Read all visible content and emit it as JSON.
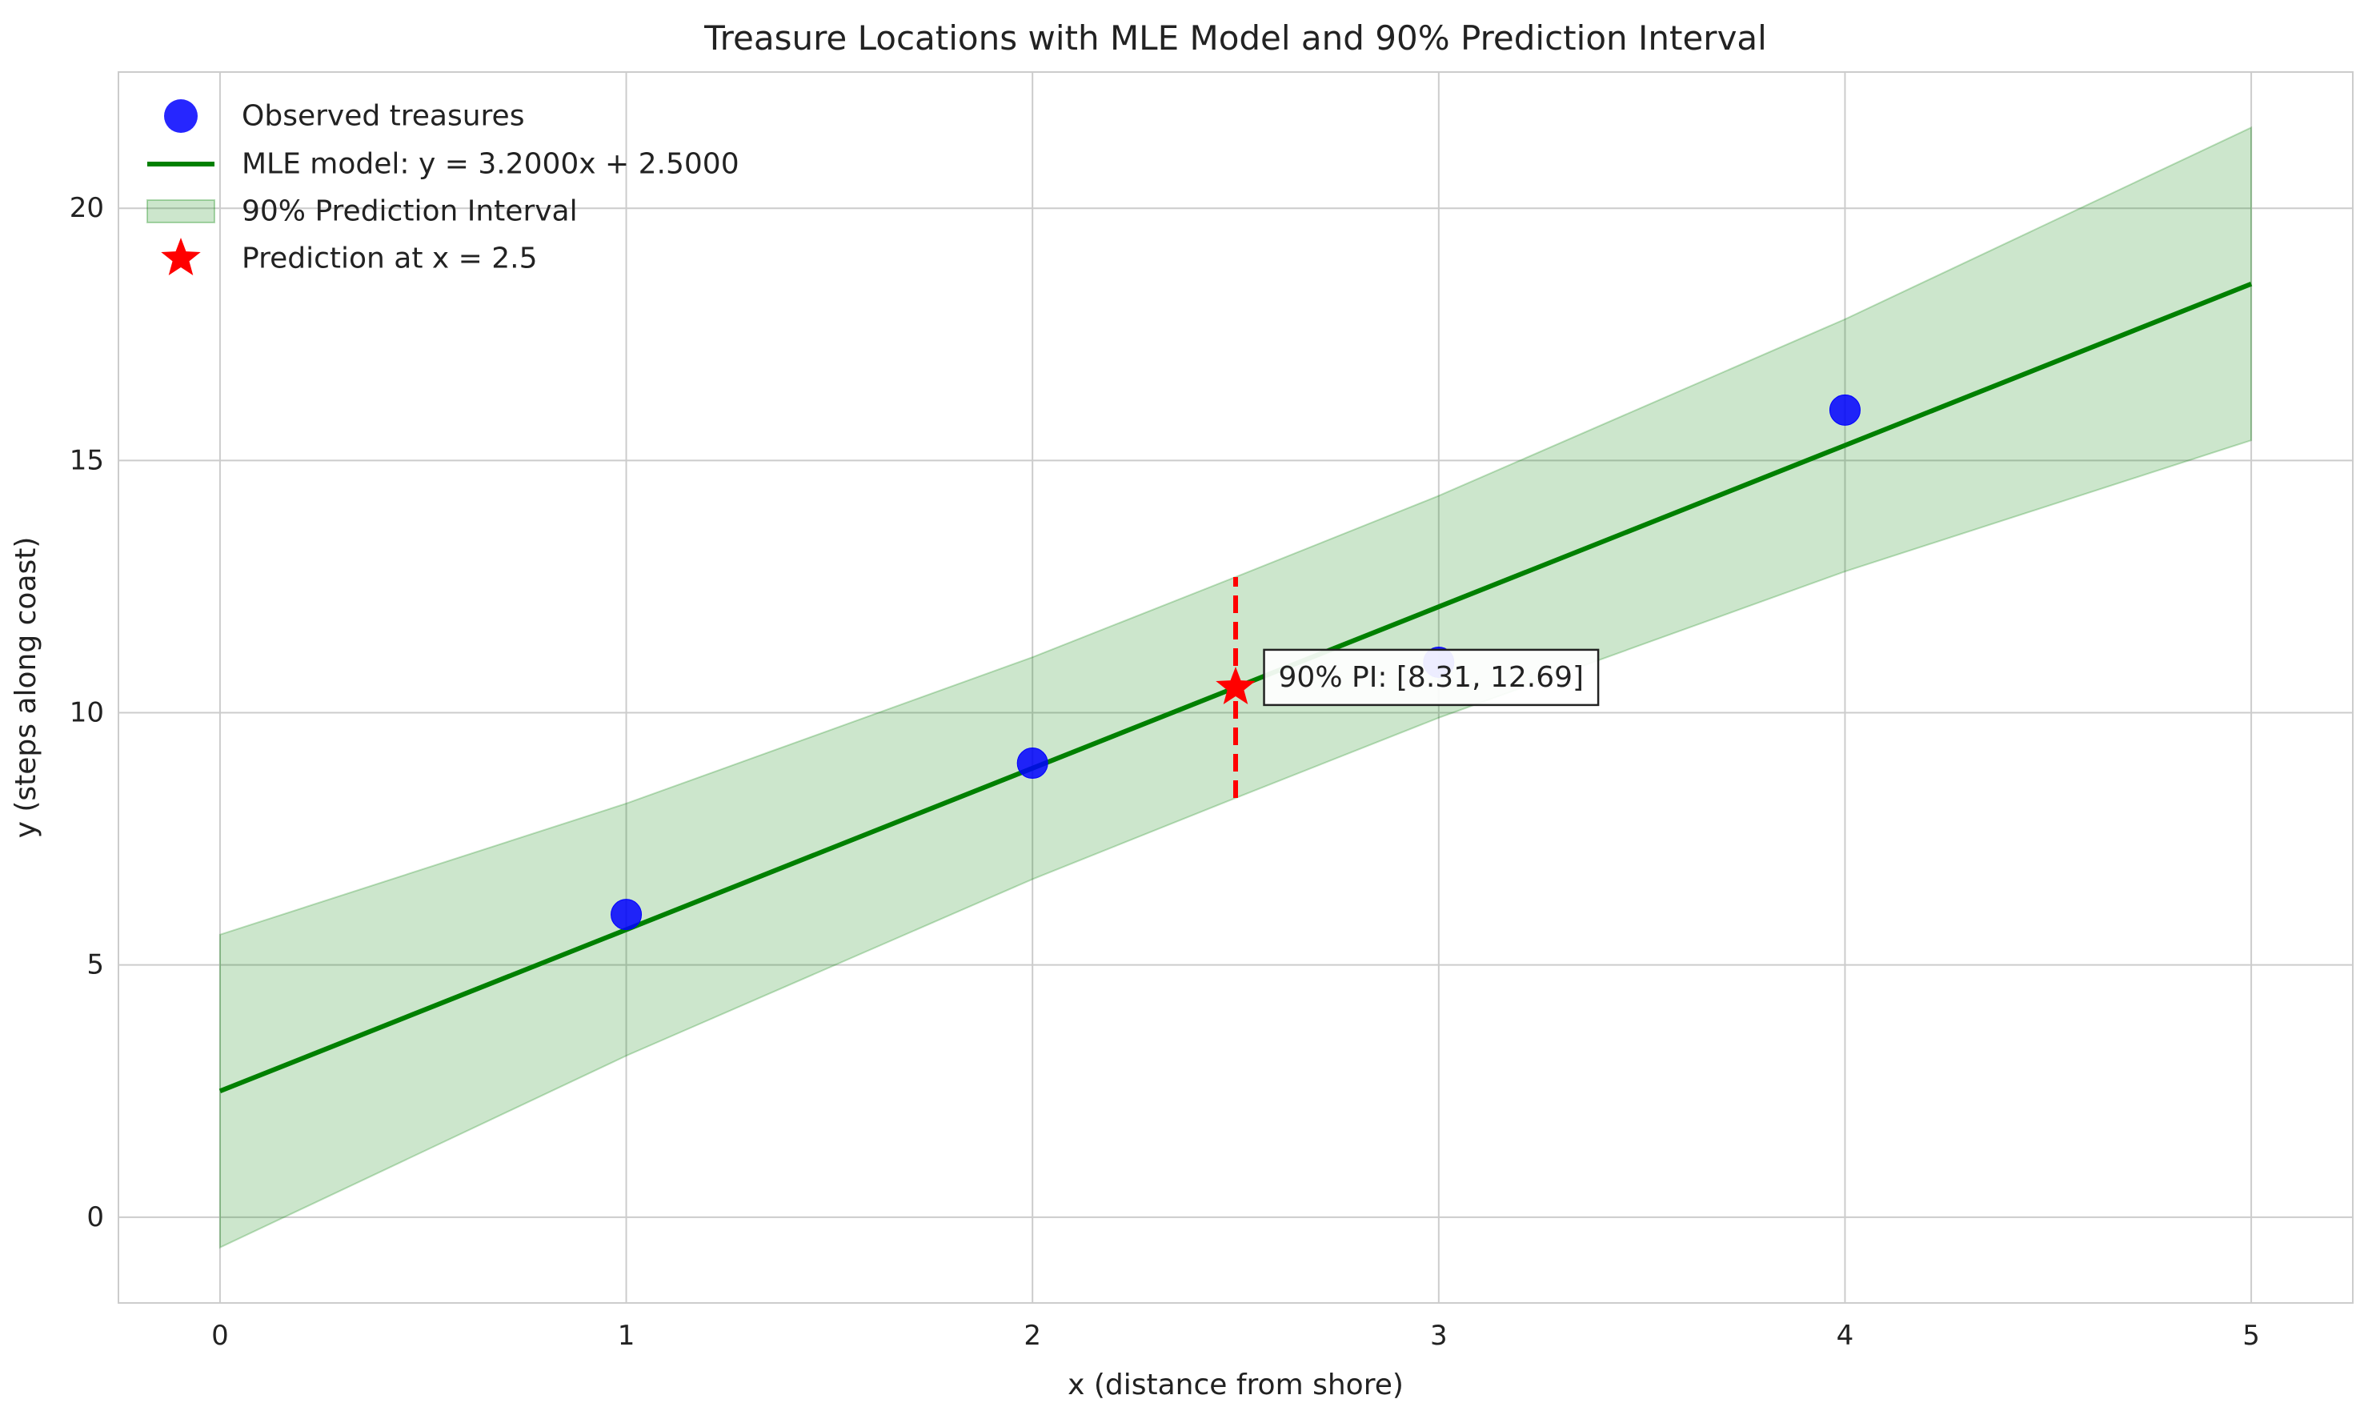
{
  "chart_data": {
    "type": "scatter",
    "title": "Treasure Locations with MLE Model and 90% Prediction Interval",
    "xlabel": "x (distance from shore)",
    "ylabel": "y (steps along coast)",
    "xlim": [
      -0.25,
      5.25
    ],
    "ylim": [
      -1.7,
      22.7
    ],
    "xticks": [
      0,
      1,
      2,
      3,
      4,
      5
    ],
    "yticks": [
      0,
      5,
      10,
      15,
      20
    ],
    "grid": true,
    "legend_position": "top-left",
    "colors": {
      "points": "#0000ff",
      "model": "#008000",
      "band": "#008000",
      "prediction": "#ff0000"
    },
    "series": [
      {
        "name": "Observed treasures",
        "kind": "scatter",
        "x": [
          1,
          2,
          3,
          4
        ],
        "y": [
          6,
          9,
          11,
          16
        ]
      },
      {
        "name": "MLE model: y = 3.2000x + 2.5000",
        "kind": "line",
        "slope": 3.2,
        "intercept": 2.5,
        "x_range": [
          0,
          5
        ]
      },
      {
        "name": "90% Prediction Interval",
        "kind": "band",
        "x": [
          0,
          1,
          2,
          2.5,
          3,
          4,
          5
        ],
        "lower": [
          -0.6,
          3.2,
          6.7,
          8.31,
          9.9,
          12.8,
          15.4
        ],
        "upper": [
          5.6,
          8.2,
          11.1,
          12.69,
          14.3,
          17.8,
          21.6
        ]
      },
      {
        "name": "Prediction at x = 2.5",
        "kind": "star",
        "x": 2.5,
        "y": 10.5
      }
    ],
    "prediction_interval": {
      "x": 2.5,
      "lower": 8.31,
      "upper": 12.69
    },
    "annotation": {
      "text": "90% PI: [8.31, 12.69]",
      "x": 2.57,
      "y": 10.7
    }
  }
}
